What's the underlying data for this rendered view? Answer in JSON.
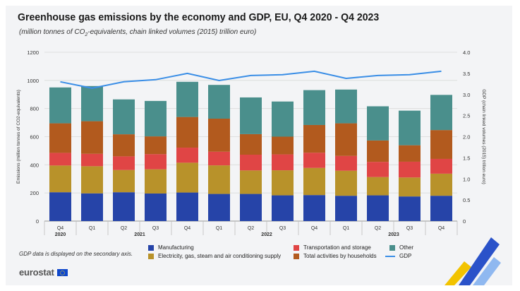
{
  "title": "Greenhouse gas emissions by the economy and GDP, EU, Q4 2020 - Q4 2023",
  "subtitle": {
    "before": "(million tonnes of CO",
    "sub": "2",
    "after": "-equivalents, chain linked volumes (2015) trillion euro)"
  },
  "note": "GDP data is displayed on the secondary axis.",
  "brand": {
    "name": "eurostat"
  },
  "colors": {
    "manufacturing": "#2644a8",
    "electricity": "#b8922a",
    "transport": "#e04545",
    "households": "#b25a1e",
    "other": "#4a8f8c",
    "gdp": "#3a8ee6"
  },
  "chart_data": {
    "type": "bar",
    "stacked": true,
    "title": "Greenhouse gas emissions by the economy and GDP, EU, Q4 2020 - Q4 2023",
    "categories": [
      "Q4",
      "Q1",
      "Q2",
      "Q3",
      "Q4",
      "Q1",
      "Q2",
      "Q3",
      "Q4",
      "Q1",
      "Q2",
      "Q3",
      "Q4"
    ],
    "year_groups": [
      {
        "label": "2020",
        "from": 0,
        "to": 0
      },
      {
        "label": "2021",
        "from": 1,
        "to": 4
      },
      {
        "label": "2022",
        "from": 5,
        "to": 8
      },
      {
        "label": "2023",
        "from": 9,
        "to": 12
      }
    ],
    "ylabel": "Emissions (million tonnes of CO2-equivalents)",
    "y2label": "GDP (chain linked volumes (2015) trillion euro)",
    "ylim": [
      0,
      1200
    ],
    "yticks": [
      0,
      200,
      400,
      600,
      800,
      1000,
      1200
    ],
    "y2lim": [
      0,
      4.0
    ],
    "y2ticks": [
      "0",
      "0.5",
      "1.0",
      "1.5",
      "2.0",
      "2.5",
      "3.0",
      "3.5",
      "4.0"
    ],
    "series": [
      {
        "name": "Manufacturing",
        "key": "manufacturing",
        "values": [
          205,
          197,
          205,
          196,
          203,
          193,
          193,
          183,
          185,
          180,
          183,
          175,
          180
        ]
      },
      {
        "name": "Electricity, gas, steam and air conditioning supply",
        "key": "electricity",
        "values": [
          190,
          193,
          158,
          172,
          212,
          203,
          167,
          178,
          193,
          178,
          130,
          135,
          157
        ]
      },
      {
        "name": "Transportation and storage",
        "key": "transport",
        "values": [
          90,
          88,
          97,
          108,
          107,
          97,
          112,
          113,
          108,
          105,
          108,
          112,
          105
        ]
      },
      {
        "name": "Total activities by households",
        "key": "households",
        "values": [
          210,
          232,
          157,
          126,
          218,
          235,
          146,
          126,
          197,
          232,
          152,
          117,
          205
        ]
      },
      {
        "name": "Other",
        "key": "other",
        "values": [
          255,
          250,
          248,
          252,
          250,
          240,
          261,
          250,
          248,
          240,
          243,
          246,
          250
        ]
      }
    ],
    "line": {
      "name": "GDP",
      "axis": "secondary",
      "values": [
        3.3,
        3.15,
        3.3,
        3.35,
        3.5,
        3.33,
        3.45,
        3.47,
        3.55,
        3.38,
        3.45,
        3.47,
        3.55
      ]
    }
  },
  "legend": {
    "manufacturing": "Manufacturing",
    "electricity": "Electricity, gas, steam and air conditioning supply",
    "transport": "Transportation and storage",
    "households": "Total activities by households",
    "other": "Other",
    "gdp": "GDP"
  }
}
